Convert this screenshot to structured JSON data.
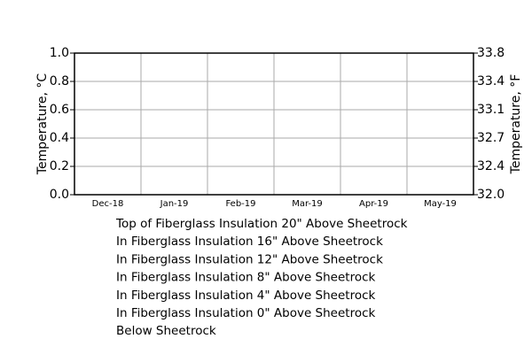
{
  "chart_data": {
    "type": "line",
    "x": [],
    "series": [
      {
        "name": "Top of Fiberglass Insulation 20\" Above Sheetrock",
        "values": []
      },
      {
        "name": "In Fiberglass Insulation 16\" Above Sheetrock",
        "values": []
      },
      {
        "name": "In Fiberglass Insulation 12\" Above Sheetrock",
        "values": []
      },
      {
        "name": "In Fiberglass Insulation 8\" Above Sheetrock",
        "values": []
      },
      {
        "name": "In Fiberglass Insulation 4\" Above Sheetrock",
        "values": []
      },
      {
        "name": "In Fiberglass Insulation 0\" Above Sheetrock",
        "values": []
      },
      {
        "name": "Below Sheetrock",
        "values": []
      }
    ],
    "y_label": "Temperature, °C",
    "y2_label": "Temperature, °F",
    "xlim": [
      "2018-12",
      "2019-06"
    ],
    "xticks": [
      {
        "value": "2018-12",
        "label": "Dec-18"
      },
      {
        "value": "2019-01",
        "label": "Jan-19"
      },
      {
        "value": "2019-02",
        "label": "Feb-19"
      },
      {
        "value": "2019-03",
        "label": "Mar-19"
      },
      {
        "value": "2019-04",
        "label": "Apr-19"
      },
      {
        "value": "2019-05",
        "label": "May-19"
      }
    ],
    "ylim": [
      0,
      1
    ],
    "yticks": [
      {
        "value": 0,
        "label": "0.0"
      },
      {
        "value": 0.2,
        "label": "0.2"
      },
      {
        "value": 0.4,
        "label": "0.4"
      },
      {
        "value": 0.6,
        "label": "0.6"
      },
      {
        "value": 0.8,
        "label": "0.8"
      },
      {
        "value": 1,
        "label": "1.0"
      }
    ],
    "y2lim": [
      32,
      33.8
    ],
    "y2ticks": [
      {
        "value": 32,
        "label": "32.0"
      },
      {
        "value": 32.36,
        "label": "32.4"
      },
      {
        "value": 32.72,
        "label": "32.7"
      },
      {
        "value": 33.08,
        "label": "33.1"
      },
      {
        "value": 33.44,
        "label": "33.4"
      },
      {
        "value": 33.8,
        "label": "33.8"
      }
    ],
    "grid": true,
    "legend": "below"
  }
}
